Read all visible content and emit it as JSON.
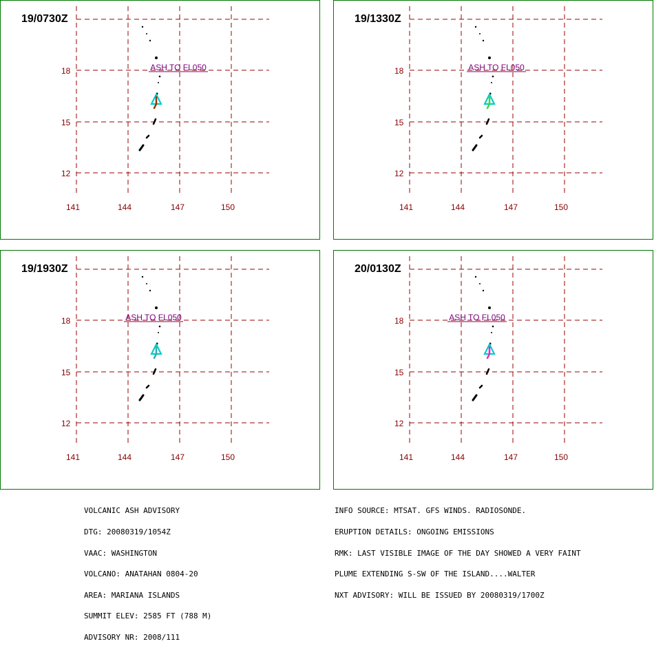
{
  "advisory_header": "VOLCANIC ASH ADVISORY",
  "colors": {
    "grid": "#990000",
    "frame": "#007700",
    "label": "#880000",
    "ash_text": "#770077",
    "volcano_marker": "#00cccc",
    "islands": "#000000"
  },
  "grid": {
    "lat_labels": [
      "18",
      "15",
      "12"
    ],
    "lon_labels": [
      "141",
      "144",
      "147",
      "150"
    ]
  },
  "panels": [
    {
      "timestamp": "19/0730Z",
      "ash_label": "ASH TO FL050",
      "plume_color": "#993300"
    },
    {
      "timestamp": "19/1330Z",
      "ash_label": "ASH TO FL050",
      "plume_color": "#33dd33"
    },
    {
      "timestamp": "19/1930Z",
      "ash_label": "ASH TO FL050",
      "plume_color": "#33aaaa"
    },
    {
      "timestamp": "20/0130Z",
      "ash_label": "ASH TO FL050",
      "plume_color": "#ee22cc"
    }
  ],
  "info_left": [
    "VOLCANIC ASH ADVISORY",
    "DTG: 20080319/1054Z",
    "VAAC: WASHINGTON",
    "VOLCANO: ANATAHAN 0804-20",
    "AREA: MARIANA ISLANDS",
    "SUMMIT ELEV: 2585 FT (788 M)",
    "ADVISORY NR: 2008/111"
  ],
  "info_right": [
    "INFO SOURCE: MTSAT. GFS WINDS. RADIOSONDE.",
    "ERUPTION DETAILS: ONGOING EMISSIONS",
    "RMK: LAST VISIBLE IMAGE OF THE DAY SHOWED A VERY FAINT",
    "PLUME EXTENDING S-SW OF THE ISLAND....WALTER",
    "NXT ADVISORY: WILL BE ISSUED BY 20080319/1700Z"
  ]
}
